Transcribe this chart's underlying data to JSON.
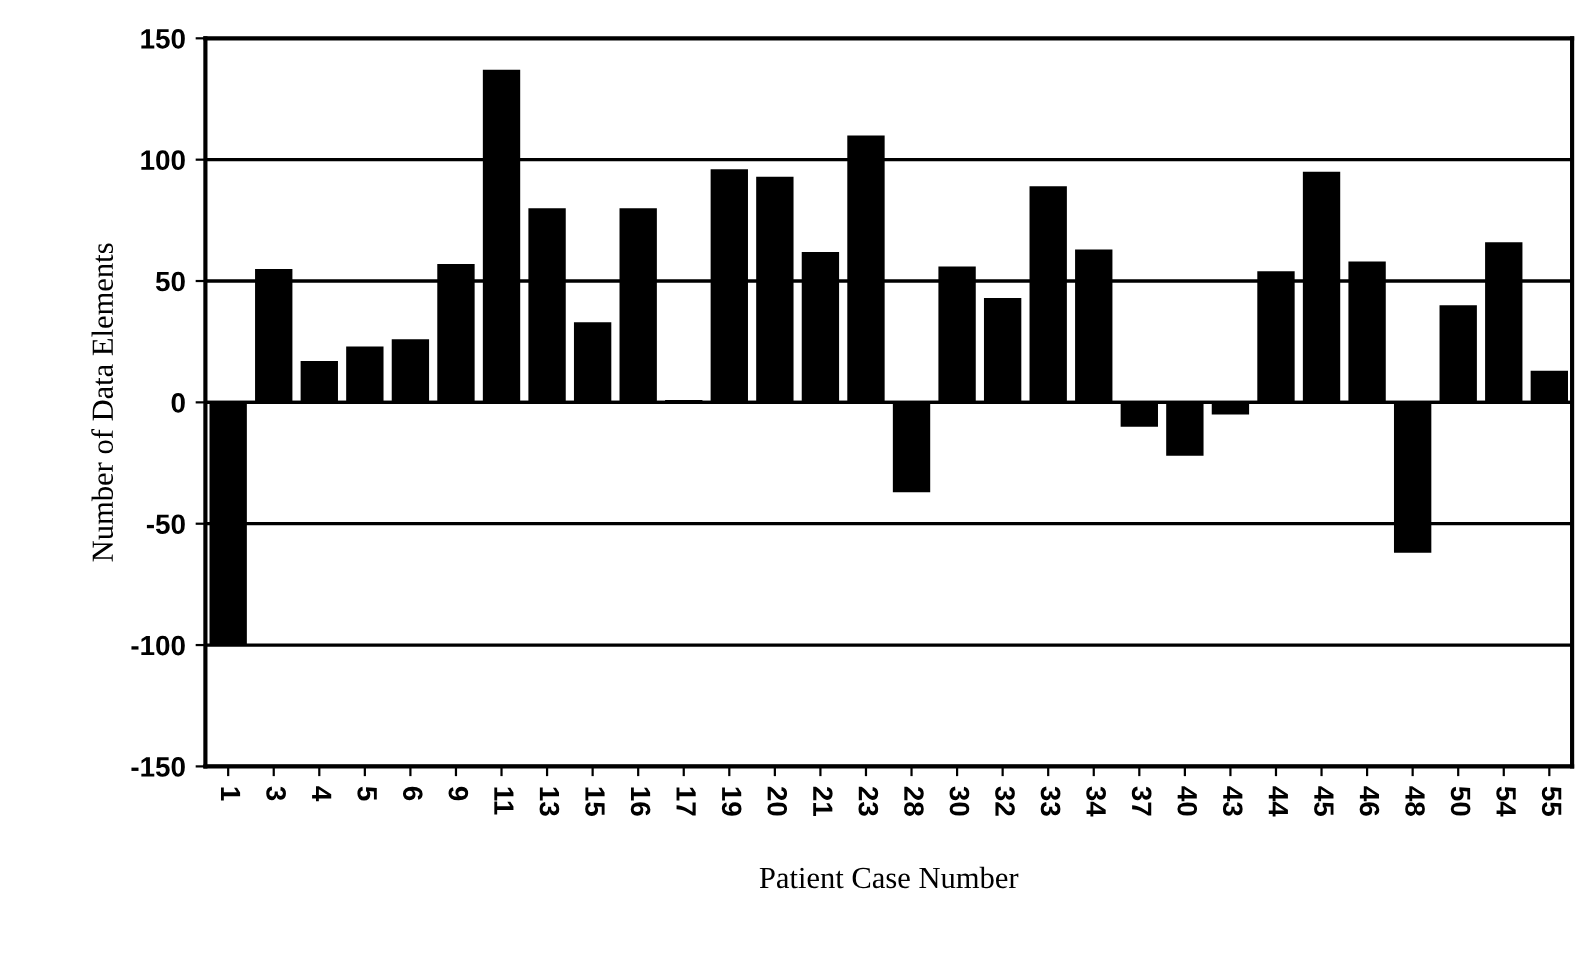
{
  "chart_data": {
    "type": "bar",
    "xlabel": "Patient Case Number",
    "ylabel": "Number of Data Elements",
    "categories": [
      "1",
      "3",
      "4",
      "5",
      "6",
      "9",
      "11",
      "13",
      "15",
      "16",
      "17",
      "19",
      "20",
      "21",
      "23",
      "28",
      "30",
      "32",
      "33",
      "34",
      "37",
      "40",
      "43",
      "44",
      "45",
      "46",
      "48",
      "50",
      "54",
      "55"
    ],
    "values": [
      -100,
      55,
      17,
      23,
      26,
      57,
      137,
      80,
      33,
      80,
      1,
      96,
      93,
      62,
      110,
      -37,
      56,
      43,
      89,
      63,
      -10,
      -22,
      -5,
      54,
      95,
      58,
      -62,
      40,
      66,
      13
    ],
    "color": "#000000",
    "ylim": [
      -150,
      150
    ],
    "yticks": [
      -150,
      -100,
      -50,
      0,
      50,
      100,
      150
    ],
    "grid": "y"
  }
}
